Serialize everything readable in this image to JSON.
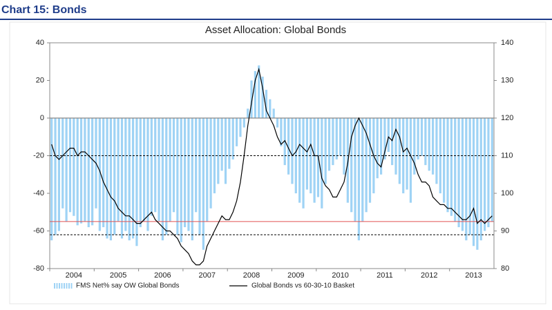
{
  "header": "Chart 15: Bonds",
  "chart_data": {
    "type": "bar-line",
    "title": "Asset Allocation: Global Bonds",
    "categories": [
      null,
      null,
      null,
      null,
      null,
      null,
      "2004",
      null,
      null,
      null,
      null,
      null,
      null,
      null,
      null,
      null,
      null,
      null,
      "2005",
      null,
      null,
      null,
      null,
      null,
      null,
      null,
      null,
      null,
      null,
      null,
      "2006",
      null,
      null,
      null,
      null,
      null,
      null,
      null,
      null,
      null,
      null,
      null,
      "2007",
      null,
      null,
      null,
      null,
      null,
      null,
      null,
      null,
      null,
      null,
      null,
      "2008",
      null,
      null,
      null,
      null,
      null,
      null,
      null,
      null,
      null,
      null,
      null,
      "2009",
      null,
      null,
      null,
      null,
      null,
      null,
      null,
      null,
      null,
      null,
      null,
      "2010",
      null,
      null,
      null,
      null,
      null,
      null,
      null,
      null,
      null,
      null,
      null,
      "2011",
      null,
      null,
      null,
      null,
      null,
      null,
      null,
      null,
      null,
      null,
      null,
      "2012",
      null,
      null,
      null,
      null,
      null,
      null,
      null,
      null,
      null,
      null,
      null,
      "2013",
      null,
      null,
      null,
      null,
      null
    ],
    "series": [
      {
        "name": "FMS Net% say OW Global Bonds",
        "type": "bar",
        "color": "#9fd3f5",
        "values": [
          -65,
          -62,
          -60,
          -48,
          -55,
          -50,
          -52,
          -57,
          -56,
          -55,
          -58,
          -57,
          -48,
          -60,
          -58,
          -64,
          -65,
          -62,
          -55,
          -64,
          -60,
          -65,
          -64,
          -68,
          -58,
          -55,
          -60,
          -52,
          -50,
          -55,
          -65,
          -62,
          -55,
          -50,
          -62,
          -66,
          -58,
          -60,
          -65,
          -50,
          -62,
          -70,
          -55,
          -48,
          -40,
          -35,
          -28,
          -35,
          -27,
          -22,
          -15,
          -10,
          -5,
          5,
          20,
          25,
          28,
          22,
          15,
          10,
          5,
          -5,
          -15,
          -25,
          -30,
          -35,
          -40,
          -45,
          -48,
          -38,
          -40,
          -45,
          -42,
          -48,
          -35,
          -28,
          -25,
          -22,
          -20,
          -30,
          -45,
          -50,
          -55,
          -65,
          -55,
          -50,
          -45,
          -40,
          -32,
          -30,
          -22,
          -18,
          -25,
          -30,
          -35,
          -40,
          -38,
          -45,
          -30,
          -22,
          -20,
          -25,
          -28,
          -30,
          -35,
          -40,
          -45,
          -50,
          -52,
          -55,
          -58,
          -60,
          -65,
          -62,
          -68,
          -70,
          -65,
          -60,
          -58,
          -55
        ]
      },
      {
        "name": "Global Bonds vs 60-30-10 Basket",
        "type": "line",
        "axis": "y2",
        "color": "#000000",
        "values": [
          113,
          110,
          109,
          110,
          111,
          112,
          112,
          110,
          111,
          111,
          110,
          109,
          108,
          106,
          103,
          101,
          99,
          98,
          96,
          95,
          94,
          94,
          93,
          92,
          92,
          93,
          94,
          95,
          93,
          92,
          91,
          90,
          90,
          89,
          88,
          86,
          85,
          84,
          82,
          81,
          81,
          82,
          86,
          88,
          90,
          92,
          94,
          93,
          93,
          95,
          98,
          103,
          110,
          118,
          124,
          130,
          133,
          128,
          122,
          120,
          118,
          115,
          113,
          114,
          112,
          110,
          111,
          113,
          112,
          111,
          113,
          110,
          110,
          104,
          102,
          101,
          99,
          99,
          101,
          103,
          108,
          115,
          118,
          120,
          118,
          116,
          113,
          110,
          108,
          107,
          111,
          115,
          114,
          117,
          115,
          111,
          112,
          110,
          108,
          105,
          103,
          103,
          102,
          99,
          98,
          97,
          97,
          96,
          96,
          95,
          94,
          93,
          93,
          94,
          96,
          92,
          93,
          92,
          93,
          94
        ]
      }
    ],
    "ylim": [
      -80,
      40
    ],
    "yticks": [
      -80,
      -60,
      -40,
      -20,
      0,
      20,
      40
    ],
    "y2lim": [
      80,
      140
    ],
    "y2ticks": [
      80,
      90,
      100,
      110,
      120,
      130,
      140
    ],
    "reference_lines": [
      {
        "value": -20,
        "color": "#000000",
        "style": "dashed"
      },
      {
        "value": -55,
        "color": "#e05050",
        "style": "solid"
      },
      {
        "value": -62,
        "color": "#000000",
        "style": "dashed"
      }
    ]
  }
}
